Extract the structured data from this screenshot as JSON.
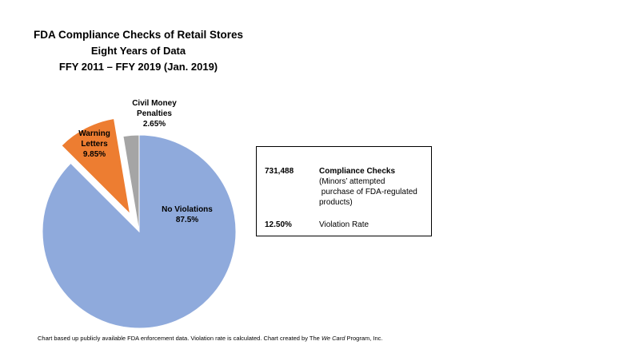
{
  "title": {
    "line1": "FDA Compliance Checks of Retail Stores",
    "line2": "Eight Years of Data",
    "line3": "FFY 2011 – FFY 2019 (Jan. 2019)"
  },
  "chart_data": {
    "type": "pie",
    "slices": [
      {
        "label_lines": [
          "No Violations",
          "87.5%"
        ],
        "value": 87.5,
        "color": "#8faadc",
        "exploded": false
      },
      {
        "label_lines": [
          "Warning",
          "Letters",
          "9.85%"
        ],
        "value": 9.85,
        "color": "#ed7d31",
        "exploded": true
      },
      {
        "label_lines": [
          "Civil Money",
          "Penalties",
          "2.65%"
        ],
        "value": 2.65,
        "color": "#a5a5a5",
        "exploded": false
      }
    ]
  },
  "info_box": {
    "row1": {
      "number": "731,488",
      "label": "Compliance Checks",
      "sub1": "(Minors’ attempted",
      "sub2": " purchase of FDA-regulated",
      "sub3": "products)"
    },
    "row2": {
      "number": "12.50%",
      "label": "Violation Rate"
    }
  },
  "footnote": {
    "pre": "Chart based up publicly available FDA enforcement data. Violation rate is calculated. Chart created by The ",
    "em": "We Card",
    "post": " Program, Inc."
  }
}
